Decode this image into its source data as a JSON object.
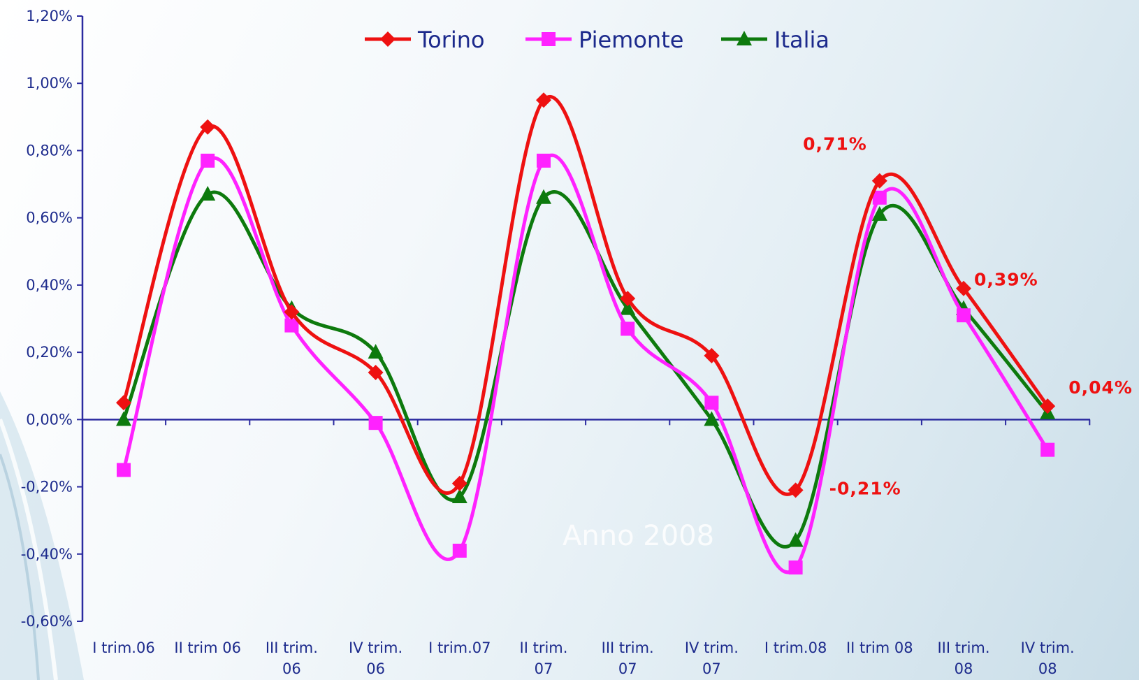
{
  "chart_data": {
    "type": "line",
    "title": "",
    "xlabel": "",
    "ylabel": "",
    "ylim": [
      -0.6,
      1.2
    ],
    "y_ticks": [
      "1,20%",
      "1,00%",
      "0,80%",
      "0,60%",
      "0,40%",
      "0,20%",
      "0,00%",
      "-0,20%",
      "-0,40%",
      "-0,60%"
    ],
    "y_tick_values": [
      1.2,
      1.0,
      0.8,
      0.6,
      0.4,
      0.2,
      0.0,
      -0.2,
      -0.4,
      -0.6
    ],
    "categories": [
      [
        "I trim.06"
      ],
      [
        "II trim 06"
      ],
      [
        "III trim.",
        "06"
      ],
      [
        "IV trim.",
        "06"
      ],
      [
        "I trim.07"
      ],
      [
        "II trim.",
        "07"
      ],
      [
        "III trim.",
        "07"
      ],
      [
        "IV trim.",
        "07"
      ],
      [
        "I trim.08"
      ],
      [
        "II trim 08"
      ],
      [
        "III trim.",
        "08"
      ],
      [
        "IV trim.",
        "08"
      ]
    ],
    "series": [
      {
        "name": "Torino",
        "color": "#ee1111",
        "marker": "diamond",
        "values": [
          0.05,
          0.87,
          0.32,
          0.14,
          -0.19,
          0.95,
          0.36,
          0.19,
          -0.21,
          0.71,
          0.39,
          0.04
        ]
      },
      {
        "name": "Piemonte",
        "color": "#ff22ff",
        "marker": "square",
        "values": [
          -0.15,
          0.77,
          0.28,
          -0.01,
          -0.39,
          0.77,
          0.27,
          0.05,
          -0.44,
          0.66,
          0.31,
          -0.09
        ]
      },
      {
        "name": "Italia",
        "color": "#0d7a0d",
        "marker": "triangle",
        "values": [
          0.0,
          0.67,
          0.33,
          0.2,
          -0.23,
          0.66,
          0.33,
          0.0,
          -0.36,
          0.61,
          0.33,
          0.02
        ]
      }
    ],
    "annotations": [
      {
        "series": "Torino",
        "index": 9,
        "text": "0,71%"
      },
      {
        "series": "Torino",
        "index": 10,
        "text": "0,39%"
      },
      {
        "series": "Torino",
        "index": 11,
        "text": "0,04%"
      },
      {
        "series": "Torino",
        "index": 8,
        "text": "-0,21%"
      }
    ],
    "legend": {
      "position": "top-center"
    },
    "grid": false
  },
  "watermark": "Anno 2008"
}
